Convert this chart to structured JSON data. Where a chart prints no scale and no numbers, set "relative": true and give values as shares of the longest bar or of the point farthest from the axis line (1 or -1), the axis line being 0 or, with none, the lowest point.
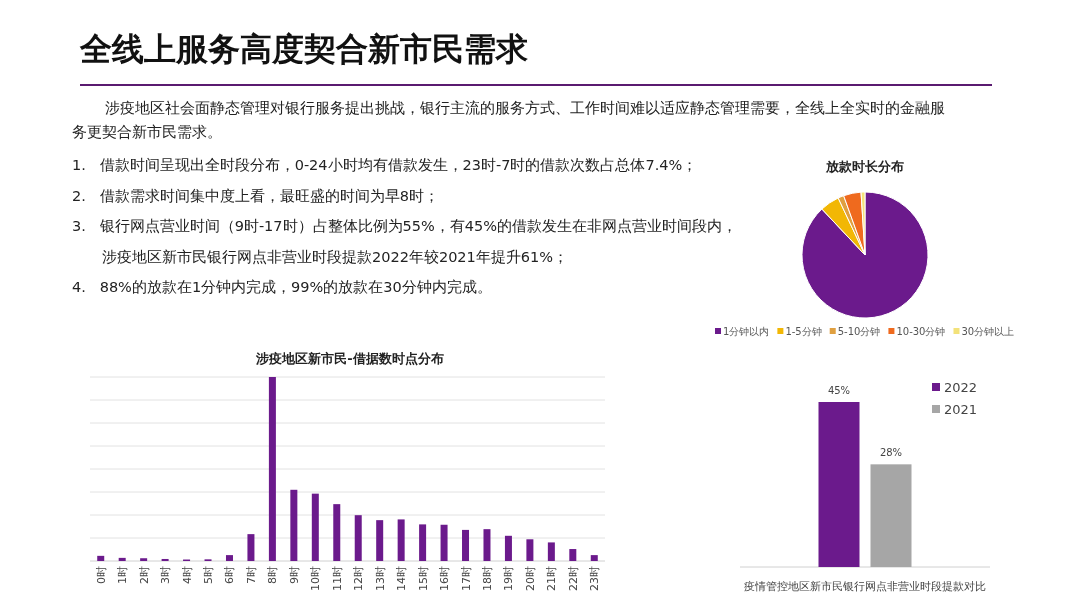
{
  "chart_data": [
    {
      "type": "other",
      "title": "全线上服务高度契合新市民需求",
      "subtitle": "涉疫地区社会面静态管理对银行服务提出挑战，银行主流的服务方式、工作时间难以适应静态管理需要，全线上全实时的金融服务更契合新市民需求。",
      "annotations": [
        "1.   借款时间呈现出全时段分布，0-24小时均有借款发生，23时-7时的借款次数占总体7.4%；",
        "2.   借款需求时间集中度上看，最旺盛的时间为早8时；",
        "3.   银行网点营业时间（9时-17时）占整体比例为55%，有45%的借款发生在非网点营业时间段内，",
        "涉疫地区新市民银行网点非营业时段提款2022年较2021年提升61%；",
        "4.   88%的放款在1分钟内完成，99%的放款在30分钟内完成。"
      ]
    },
    {
      "type": "bar",
      "title": "涉疫地区新市民-借据数时点分布",
      "relative": true,
      "grid": "y",
      "color": "#6b1a8c",
      "categories": [
        "0时",
        "1时",
        "2时",
        "3时",
        "4时",
        "5时",
        "6时",
        "7时",
        "8时",
        "9时",
        "10时",
        "11时",
        "12时",
        "13时",
        "14时",
        "15时",
        "16时",
        "17时",
        "18时",
        "19时",
        "20时",
        "21时",
        "22时",
        "23时"
      ],
      "values": [
        0.028,
        0.017,
        0.015,
        0.011,
        0.008,
        0.009,
        0.032,
        0.146,
        1,
        0.387,
        0.366,
        0.309,
        0.249,
        0.222,
        0.226,
        0.199,
        0.197,
        0.169,
        0.173,
        0.137,
        0.118,
        0.101,
        0.065,
        0.032
      ]
    },
    {
      "type": "pie",
      "title": "放款时长分布",
      "legend": "bottom",
      "categories": [
        "1分钟以内",
        "1-5分钟",
        "5-10分钟",
        "10-30分钟",
        "30分钟以上"
      ],
      "values": [
        88,
        5,
        1.5,
        4.5,
        1
      ],
      "colors": [
        "#6b1a8c",
        "#f2b705",
        "#e0a040",
        "#ef6a1e",
        "#f3e27a"
      ]
    },
    {
      "type": "bar",
      "data_labels": true,
      "legend": "top right",
      "categories": [
        "疫情管控地区新市民银行网点非营业时段提款对比"
      ],
      "series": [
        {
          "name": "2022",
          "color": "#6b1a8c",
          "values": [
            45
          ],
          "value_labels": [
            "45%"
          ]
        },
        {
          "name": "2021",
          "color": "#a6a6a6",
          "values": [
            28
          ],
          "value_labels": [
            "28%"
          ]
        }
      ]
    }
  ]
}
